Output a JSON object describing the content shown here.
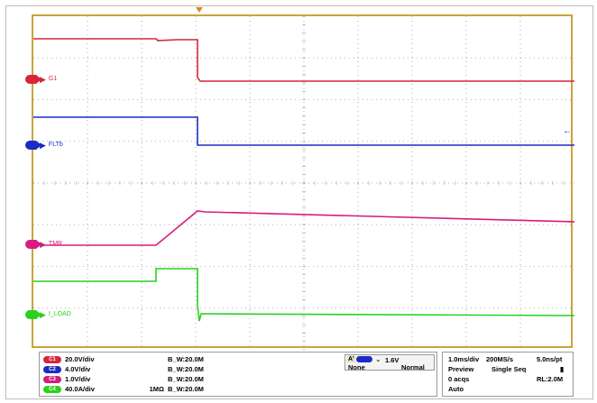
{
  "channels": [
    {
      "id": "C1",
      "name": "G1",
      "color": "#d6263a",
      "scale": "20.0V/div",
      "impedance": "",
      "bw": "B_W:20.0M"
    },
    {
      "id": "C2",
      "name": "FLTb",
      "color": "#1a2cc4",
      "scale": "4.0V/div",
      "impedance": "",
      "bw": "B_W:20.0M"
    },
    {
      "id": "C3",
      "name": "TMR",
      "color": "#d61c7e",
      "scale": "1.0V/div",
      "impedance": "",
      "bw": "B_W:20.0M"
    },
    {
      "id": "C4",
      "name": "I_LOAD",
      "color": "#2ad11f",
      "scale": "40.0A/div",
      "impedance": "1MΩ",
      "bw": "B_W:20.0M"
    }
  ],
  "trigger": {
    "label": "A'",
    "source_color": "#1a2cc4",
    "edge_icon": "falling-edge-icon",
    "level": "1.6V",
    "coupling": "None",
    "mode": "Normal",
    "level_marker": "←"
  },
  "timebase": {
    "time_div": "1.0ms/div",
    "sample_rate": "200MS/s",
    "resolution": "5.0ns/pt",
    "state": "Preview",
    "acq_mode": "Single Seq",
    "acqs": "0 acqs",
    "record_length": "RL:2.0M",
    "auto": "Auto"
  },
  "marker_icons": {
    "pointer": "▶"
  }
}
